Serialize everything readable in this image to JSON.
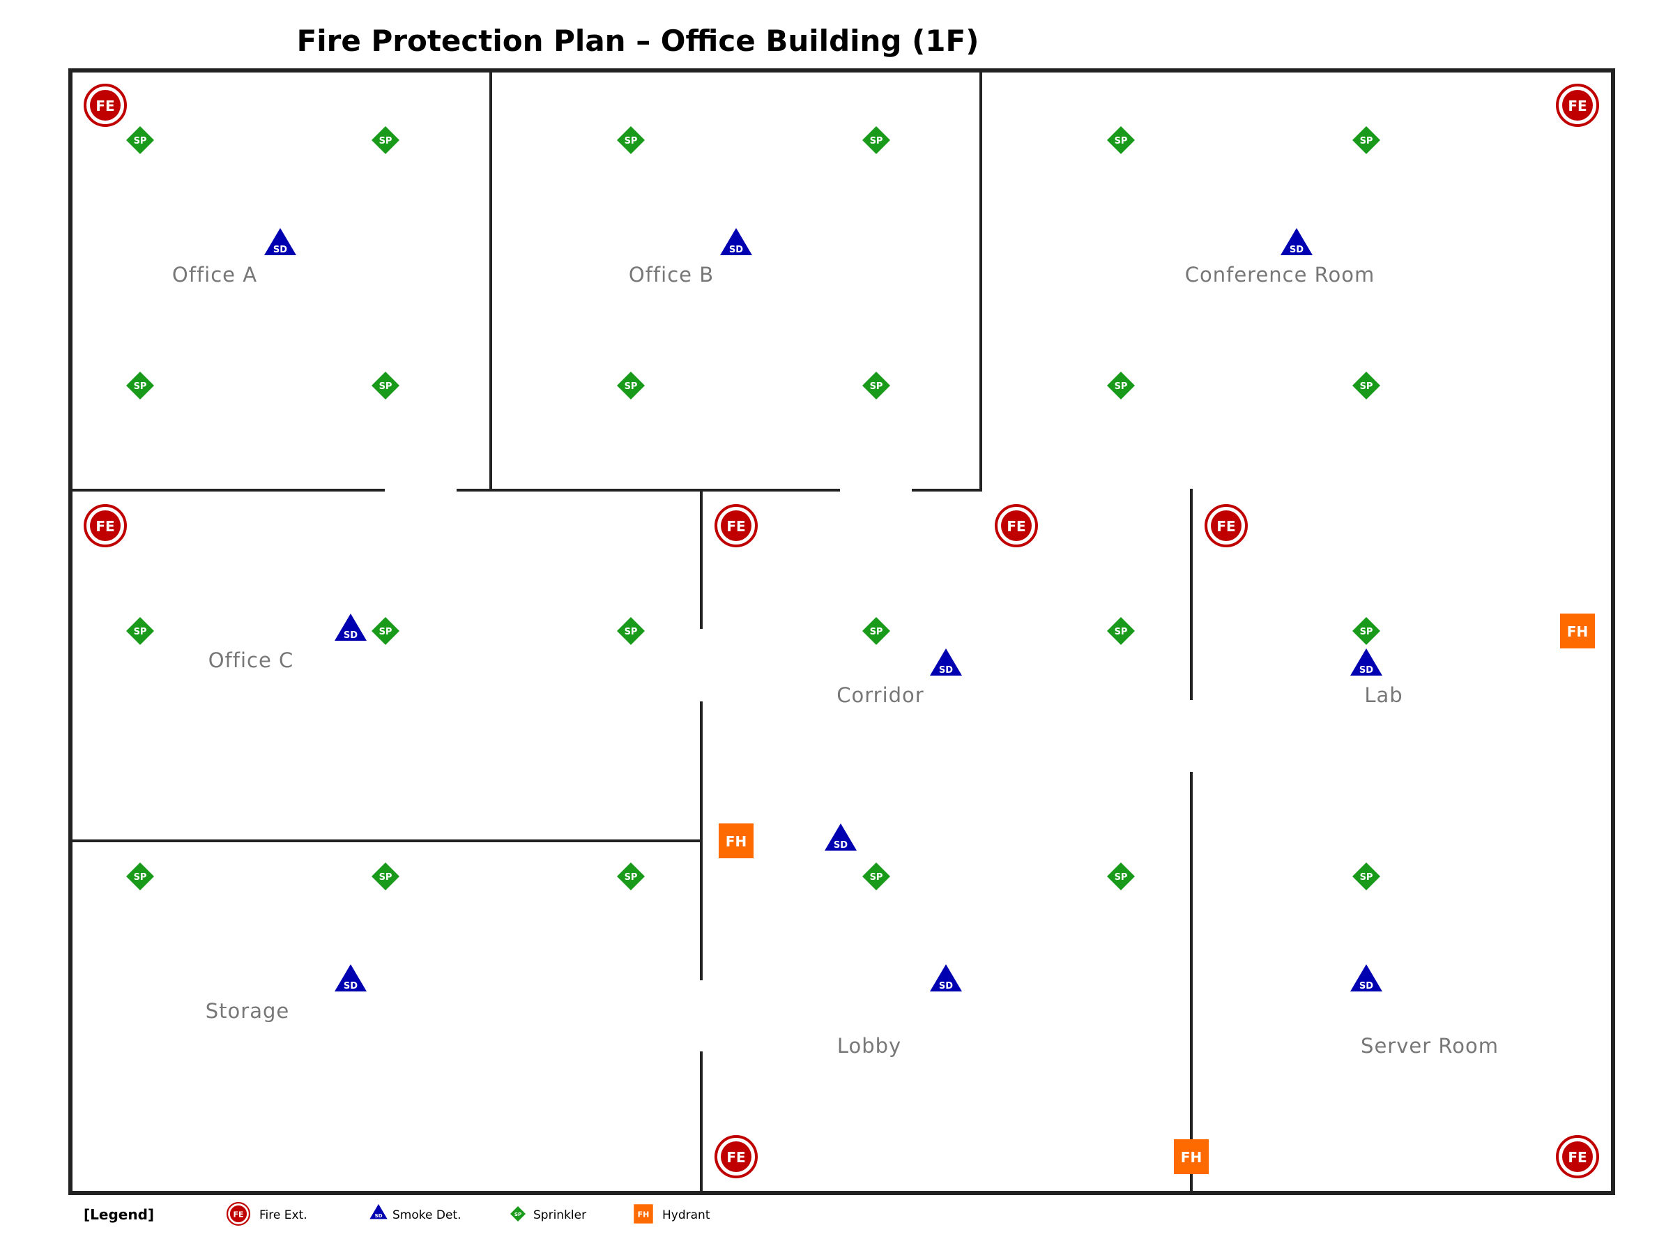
{
  "title": "Fire Protection Plan – Office Building (1F)",
  "rooms": [
    {
      "id": "office-a",
      "label": "Office A"
    },
    {
      "id": "office-b",
      "label": "Office B"
    },
    {
      "id": "conference-room",
      "label": "Conference Room"
    },
    {
      "id": "office-c",
      "label": "Office C"
    },
    {
      "id": "corridor",
      "label": "Corridor"
    },
    {
      "id": "lab",
      "label": "Lab"
    },
    {
      "id": "storage",
      "label": "Storage"
    },
    {
      "id": "lobby",
      "label": "Lobby"
    },
    {
      "id": "server-room",
      "label": "Server Room"
    }
  ],
  "symbol_codes": {
    "fire_extinguisher": "FE",
    "smoke_detector": "SD",
    "sprinkler": "SP",
    "hydrant": "FH"
  },
  "colors": {
    "fire_extinguisher": "#c00000",
    "smoke_detector": "#0000b0",
    "sprinkler": "#1a9a1a",
    "hydrant": "#ff6a00",
    "wall": "#222222",
    "room_label": "#777777"
  },
  "legend": {
    "heading": "[Legend]",
    "items": [
      {
        "type": "fire_extinguisher",
        "code": "FE",
        "label": "Fire Ext."
      },
      {
        "type": "smoke_detector",
        "code": "SD",
        "label": "Smoke Det."
      },
      {
        "type": "sprinkler",
        "code": "SP",
        "label": "Sprinkler"
      },
      {
        "type": "hydrant",
        "code": "FH",
        "label": "Hydrant"
      }
    ]
  }
}
